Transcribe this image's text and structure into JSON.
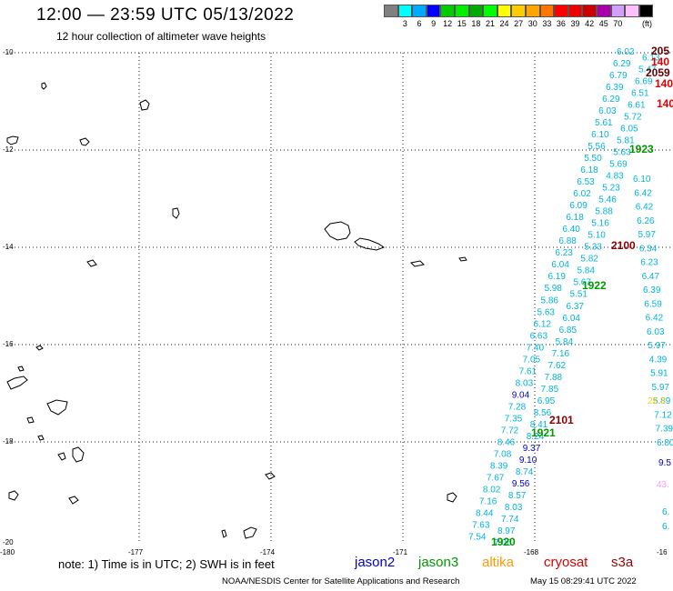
{
  "title": "12:00 — 23:59 UTC 05/13/2022",
  "subtitle": "12 hour collection of altimeter wave heights",
  "colorbar": {
    "colors": [
      "#808080",
      "#00ffff",
      "#00aaff",
      "#0000ff",
      "#00cc00",
      "#00ee00",
      "#00aa00",
      "#00ff00",
      "#ffff00",
      "#ffcc00",
      "#ffa500",
      "#ff7700",
      "#ff0000",
      "#ee0000",
      "#cc0000",
      "#aa00aa",
      "#d3a0ff",
      "#ffc0ff",
      "#000000"
    ],
    "labels": [
      "",
      "3",
      "6",
      "9",
      "12",
      "15",
      "18",
      "21",
      "24",
      "27",
      "30",
      "33",
      "36",
      "39",
      "42",
      "45",
      "70",
      ""
    ],
    "unit": "(ft)"
  },
  "axes": {
    "lat_labels": [
      "-10",
      "-12",
      "-14",
      "-16",
      "-18",
      "-20"
    ],
    "lon_labels": [
      "-180",
      "-177",
      "-174",
      "-171",
      "-168",
      "-16"
    ]
  },
  "note": "note:  1) Time is in UTC;  2) SWH is in feet",
  "legend": [
    {
      "name": "jason2",
      "color": "#0000cc"
    },
    {
      "name": "jason3",
      "color": "#009900"
    },
    {
      "name": "altika",
      "color": "#ff9900"
    },
    {
      "name": "cryosat",
      "color": "#dd0000"
    },
    {
      "name": "s3a",
      "color": "#990000"
    }
  ],
  "footer": "NOAA/NESDIS Center for Satellite Applications and Research",
  "timestamp": "May 15 08:29:41 UTC 2022",
  "track_labels": [
    {
      "text": "2059",
      "color": "#660000"
    },
    {
      "text": "1923",
      "color": "#009900"
    },
    {
      "text": "2100",
      "color": "#880000"
    },
    {
      "text": "1922",
      "color": "#009900"
    },
    {
      "text": "2101",
      "color": "#880000"
    },
    {
      "text": "1921",
      "color": "#009900"
    },
    {
      "text": "1920",
      "color": "#009900"
    }
  ],
  "edge_labels": [
    {
      "text": "205",
      "color": "#660000"
    },
    {
      "text": "140",
      "color": "#dd0000"
    },
    {
      "text": "140",
      "color": "#dd0000"
    },
    {
      "text": "140",
      "color": "#dd0000"
    }
  ],
  "track_a_values": [
    "6.02",
    "6.13",
    "6.29",
    "5.47",
    "6.79",
    "6.69",
    "6.39",
    "6.51",
    "6.29",
    "6.61",
    "6.03",
    "5.72",
    "5.61",
    "6.05",
    "6.10",
    "5.81",
    "5.56",
    "5.63",
    "5.50",
    "5.69",
    "6.18",
    "4.83",
    "6.53",
    "5.23",
    "6.02",
    "5.46",
    "6.09",
    "5.88",
    "6.18",
    "5.16",
    "6.40",
    "5.10",
    "6.88",
    "5.33",
    "6.23",
    "5.82",
    "6.04",
    "5.84",
    "6.19",
    "5.67",
    "5.98",
    "5.51",
    "5.86",
    "6.37",
    "5.63",
    "6.04",
    "6.12",
    "6.85",
    "6.63",
    "5.84",
    "7.40",
    "7.16",
    "7.05",
    "7.62",
    "7.61",
    "7.88",
    "8.03",
    "7.85",
    "9.04",
    "6.95",
    "7.28",
    "8.56",
    "7.35",
    "8.41",
    "7.72",
    "8.24",
    "8.46",
    "9.37",
    "7.08",
    "9.10",
    "8.39",
    "8.74",
    "7.67",
    "9.56",
    "8.02",
    "8.57",
    "7.16",
    "8.03",
    "8.44",
    "7.74",
    "7.63",
    "8.97",
    "7.54",
    "7.06"
  ],
  "track_b_values": [
    "6.10",
    "6.42",
    "6.42",
    "6.26",
    "5.97",
    "6.34",
    "6.23",
    "6.47",
    "6.39",
    "6.59",
    "6.42",
    "6.03",
    "5.97",
    "4.39",
    "5.91",
    "5.97",
    "5.89",
    "7.12",
    "7.39",
    "6.80"
  ],
  "edge_values": [
    {
      "text": "22.3",
      "color": "#ffcc00"
    },
    {
      "text": "9.5",
      "color": "#0000cc"
    },
    {
      "text": "43.",
      "color": "#ff99ff"
    },
    {
      "text": "6.",
      "color": "#00aadd"
    },
    {
      "text": "6.",
      "color": "#00aadd"
    }
  ]
}
